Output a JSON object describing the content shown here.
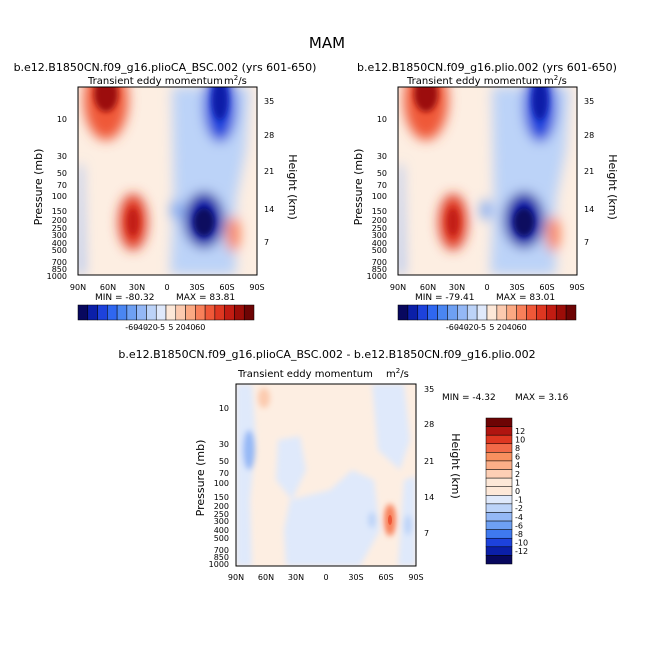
{
  "chart_data": {
    "type": "heatmap",
    "title": "MAM",
    "variable": "Transient eddy momentum",
    "units_base": "m",
    "units_exp": "2",
    "units_den": "/s",
    "ylabel_left": "Pressure (mb)",
    "ylabel_right": "Height (km)",
    "pressure_ticks": [
      "10",
      "30",
      "50",
      "70",
      "100",
      "150",
      "200",
      "250",
      "300",
      "400",
      "500",
      "700",
      "850",
      "1000"
    ],
    "height_ticks": [
      "35",
      "28",
      "21",
      "14",
      "7"
    ],
    "lat_ticks": [
      "90N",
      "60N",
      "30N",
      "0",
      "30S",
      "60S",
      "90S"
    ],
    "panels": [
      {
        "title": "b.e12.B1850CN.f09_g16.plioCA_BSC.002 (yrs 601-650)",
        "min_label": "MIN = -80.32",
        "max_label": "MAX = 83.81",
        "min": -80.32,
        "max": 83.81
      },
      {
        "title": "b.e12.B1850CN.f09_g16.plio.002 (yrs 601-650)",
        "min_label": "MIN = -79.41",
        "max_label": "MAX = 83.01",
        "min": -79.41,
        "max": 83.01
      },
      {
        "title": "b.e12.B1850CN.f09_g16.plioCA_BSC.002 - b.e12.B1850CN.f09_g16.plio.002",
        "min_label": "MIN = -4.32",
        "max_label": "MAX = 3.16",
        "min": -4.32,
        "max": 3.16
      }
    ],
    "colorbar_main": {
      "levels": [
        "-60",
        "-40",
        "-20",
        "-5",
        "5",
        "20",
        "40",
        "60"
      ],
      "colors": [
        "#08085e",
        "#0b1fa8",
        "#1d42dc",
        "#2f67f0",
        "#4a86f2",
        "#6ea0f3",
        "#94b8f6",
        "#bcd3f8",
        "#dfe9fb",
        "#fde8d8",
        "#fccaaf",
        "#fba983",
        "#f8805a",
        "#ef5838",
        "#de3721",
        "#c21c12",
        "#9c0d08",
        "#6d0404"
      ]
    },
    "colorbar_diff": {
      "levels": [
        "12",
        "10",
        "8",
        "6",
        "4",
        "2",
        "1",
        "0",
        "-1",
        "-2",
        "-4",
        "-6",
        "-8",
        "-10",
        "-12"
      ],
      "colors": [
        "#6d0404",
        "#b01510",
        "#de3721",
        "#f26a48",
        "#f8905f",
        "#fbae88",
        "#fdcfb5",
        "#fde8d8",
        "#fde8d8",
        "#dfe9fb",
        "#bcd3f8",
        "#94b8f6",
        "#6ea0f3",
        "#3f79ef",
        "#1d42dc",
        "#0b1fa8",
        "#08085e"
      ]
    }
  }
}
